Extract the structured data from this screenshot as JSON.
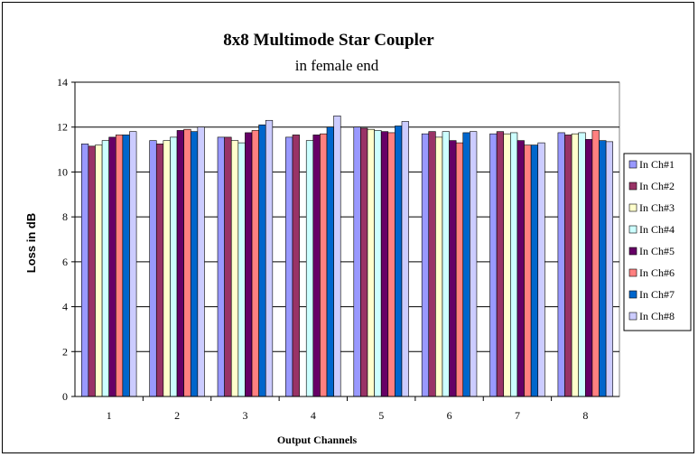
{
  "chart_data": {
    "type": "bar",
    "title": "8x8 Multimode Star Coupler",
    "subtitle": "in female end",
    "xlabel": "Output Channels",
    "ylabel": "Loss in dB",
    "ylim": [
      0,
      14
    ],
    "yticks": [
      0,
      2,
      4,
      6,
      8,
      10,
      12,
      14
    ],
    "grid": "horizontal",
    "legend_position": "right",
    "categories": [
      "1",
      "2",
      "3",
      "4",
      "5",
      "6",
      "7",
      "8"
    ],
    "series": [
      {
        "name": "In Ch#1",
        "color": "#9999ff",
        "values": [
          11.25,
          11.4,
          11.55,
          11.55,
          12.0,
          11.7,
          11.7,
          11.75
        ]
      },
      {
        "name": "In Ch#2",
        "color": "#993366",
        "values": [
          11.15,
          11.25,
          11.55,
          11.65,
          11.95,
          11.8,
          11.8,
          11.65
        ]
      },
      {
        "name": "In Ch#3",
        "color": "#ffffcc",
        "values": [
          11.2,
          11.4,
          11.4,
          0,
          11.9,
          11.55,
          11.7,
          11.7
        ]
      },
      {
        "name": "In Ch#4",
        "color": "#ccffff",
        "values": [
          11.4,
          11.55,
          11.3,
          11.4,
          11.85,
          11.8,
          11.75,
          11.75
        ]
      },
      {
        "name": "In Ch#5",
        "color": "#660066",
        "values": [
          11.55,
          11.85,
          11.75,
          11.65,
          11.8,
          11.4,
          11.4,
          11.45
        ]
      },
      {
        "name": "In Ch#6",
        "color": "#ff8080",
        "values": [
          11.65,
          11.9,
          11.85,
          11.7,
          11.75,
          11.3,
          11.2,
          11.85
        ]
      },
      {
        "name": "In Ch#7",
        "color": "#0066cc",
        "values": [
          11.65,
          11.8,
          12.1,
          12.0,
          12.05,
          11.75,
          11.2,
          11.4
        ]
      },
      {
        "name": "In Ch#8",
        "color": "#ccccff",
        "values": [
          11.8,
          12.0,
          12.3,
          12.5,
          12.25,
          11.8,
          11.3,
          11.35
        ]
      }
    ]
  }
}
